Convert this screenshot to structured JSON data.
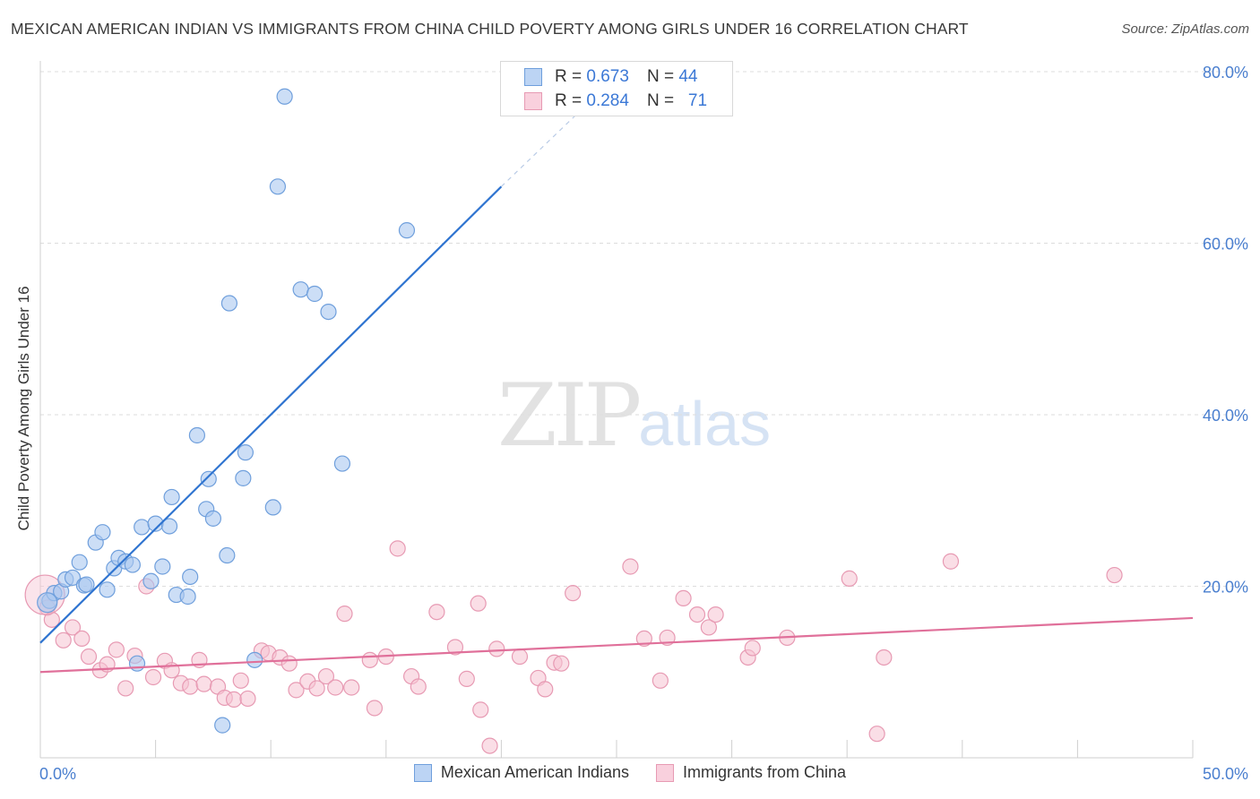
{
  "header": {
    "title": "MEXICAN AMERICAN INDIAN VS IMMIGRANTS FROM CHINA CHILD POVERTY AMONG GIRLS UNDER 16 CORRELATION CHART",
    "source": "Source: ZipAtlas.com"
  },
  "watermark": {
    "zip": "ZIP",
    "atlas": "atlas"
  },
  "colors": {
    "blue_fill": "#aac8f0",
    "blue_stroke": "#6f9fdc",
    "blue_line": "#2f74d0",
    "pink_fill": "#f6c3d2",
    "pink_stroke": "#e79ab3",
    "pink_line": "#e0709a",
    "grid": "#dddddd",
    "tick_text": "#4a7fcf"
  },
  "legend_top": {
    "rows": [
      {
        "r_label": "R =",
        "r_value": "0.673",
        "n_label": "N =",
        "n_value": "44"
      },
      {
        "r_label": "R =",
        "r_value": "0.284",
        "n_label": "N =",
        "n_value": "71"
      }
    ]
  },
  "legend_bottom": {
    "items": [
      {
        "label": "Mexican American Indians"
      },
      {
        "label": "Immigrants from China"
      }
    ]
  },
  "chart_data": {
    "type": "scatter",
    "title": "MEXICAN AMERICAN INDIAN VS IMMIGRANTS FROM CHINA CHILD POVERTY AMONG GIRLS UNDER 16 CORRELATION CHART",
    "xlabel": "",
    "ylabel": "Child Poverty Among Girls Under 16",
    "xlim": [
      0,
      50
    ],
    "ylim": [
      0,
      80
    ],
    "x_tick_labels": [
      "0.0%",
      "50.0%"
    ],
    "y_ticks": [
      20,
      40,
      60,
      80
    ],
    "y_tick_labels": [
      "20.0%",
      "40.0%",
      "60.0%",
      "80.0%"
    ],
    "grid": true,
    "series": [
      {
        "name": "Mexican American Indians",
        "r": 0.673,
        "n": 44,
        "trend": {
          "x0": 0.0,
          "y0": 13.4,
          "x1": 20.0,
          "y1": 66.6,
          "dashed_to_x": 23.8,
          "dashed_to_y": 76.4
        },
        "points": [
          [
            0.4,
            18.3
          ],
          [
            0.6,
            19.2
          ],
          [
            0.9,
            19.4
          ],
          [
            1.1,
            20.8
          ],
          [
            1.4,
            21.0
          ],
          [
            1.7,
            22.8
          ],
          [
            1.9,
            20.1
          ],
          [
            2.0,
            20.2
          ],
          [
            2.4,
            25.1
          ],
          [
            2.7,
            26.3
          ],
          [
            2.9,
            19.6
          ],
          [
            3.2,
            22.1
          ],
          [
            3.4,
            23.3
          ],
          [
            3.7,
            22.9
          ],
          [
            4.0,
            22.5
          ],
          [
            4.2,
            11.0
          ],
          [
            4.4,
            26.9
          ],
          [
            4.8,
            20.6
          ],
          [
            5.0,
            27.3
          ],
          [
            5.3,
            22.3
          ],
          [
            5.6,
            27.0
          ],
          [
            5.7,
            30.4
          ],
          [
            5.9,
            19.0
          ],
          [
            6.4,
            18.8
          ],
          [
            6.5,
            21.1
          ],
          [
            6.8,
            37.6
          ],
          [
            7.2,
            29.0
          ],
          [
            7.3,
            32.5
          ],
          [
            7.5,
            27.9
          ],
          [
            7.9,
            3.8
          ],
          [
            8.1,
            23.6
          ],
          [
            8.2,
            53.0
          ],
          [
            8.8,
            32.6
          ],
          [
            8.9,
            35.6
          ],
          [
            9.3,
            11.4
          ],
          [
            10.1,
            29.2
          ],
          [
            10.3,
            66.6
          ],
          [
            10.6,
            77.1
          ],
          [
            11.3,
            54.6
          ],
          [
            11.9,
            54.1
          ],
          [
            12.5,
            52.0
          ],
          [
            13.1,
            34.3
          ],
          [
            15.9,
            61.5
          ],
          [
            0.3,
            18.1
          ]
        ]
      },
      {
        "name": "Immigrants from China",
        "r": 0.284,
        "n": 71,
        "trend": {
          "x0": 0.0,
          "y0": 10.0,
          "x1": 50.0,
          "y1": 16.3
        },
        "points": [
          [
            0.3,
            17.5
          ],
          [
            0.5,
            16.1
          ],
          [
            1.0,
            13.7
          ],
          [
            1.4,
            15.2
          ],
          [
            1.8,
            13.9
          ],
          [
            2.1,
            11.8
          ],
          [
            2.6,
            10.2
          ],
          [
            2.9,
            10.9
          ],
          [
            3.3,
            12.6
          ],
          [
            3.7,
            8.1
          ],
          [
            4.1,
            11.9
          ],
          [
            4.6,
            20.0
          ],
          [
            4.9,
            9.4
          ],
          [
            5.4,
            11.3
          ],
          [
            5.7,
            10.2
          ],
          [
            6.1,
            8.7
          ],
          [
            6.5,
            8.3
          ],
          [
            6.9,
            11.4
          ],
          [
            7.1,
            8.6
          ],
          [
            7.7,
            8.3
          ],
          [
            8.0,
            7.0
          ],
          [
            8.4,
            6.8
          ],
          [
            8.7,
            9.0
          ],
          [
            9.0,
            6.9
          ],
          [
            9.6,
            12.5
          ],
          [
            9.9,
            12.2
          ],
          [
            10.4,
            11.7
          ],
          [
            10.8,
            11.0
          ],
          [
            11.1,
            7.9
          ],
          [
            11.6,
            8.9
          ],
          [
            12.0,
            8.1
          ],
          [
            12.4,
            9.5
          ],
          [
            12.8,
            8.2
          ],
          [
            13.2,
            16.8
          ],
          [
            13.5,
            8.2
          ],
          [
            14.3,
            11.4
          ],
          [
            14.5,
            5.8
          ],
          [
            15.0,
            11.8
          ],
          [
            15.5,
            24.4
          ],
          [
            16.1,
            9.5
          ],
          [
            16.4,
            8.3
          ],
          [
            17.2,
            17.0
          ],
          [
            18.0,
            12.9
          ],
          [
            18.5,
            9.2
          ],
          [
            19.0,
            18.0
          ],
          [
            19.1,
            5.6
          ],
          [
            19.5,
            1.4
          ],
          [
            19.8,
            12.7
          ],
          [
            20.8,
            11.8
          ],
          [
            21.6,
            9.3
          ],
          [
            21.9,
            8.0
          ],
          [
            22.3,
            11.1
          ],
          [
            22.6,
            11.0
          ],
          [
            23.1,
            19.2
          ],
          [
            25.6,
            22.3
          ],
          [
            26.2,
            13.9
          ],
          [
            26.9,
            9.0
          ],
          [
            27.2,
            14.0
          ],
          [
            27.9,
            18.6
          ],
          [
            28.5,
            16.7
          ],
          [
            29.0,
            15.2
          ],
          [
            29.3,
            16.7
          ],
          [
            30.7,
            11.7
          ],
          [
            30.9,
            12.8
          ],
          [
            32.4,
            14.0
          ],
          [
            35.1,
            20.9
          ],
          [
            36.3,
            2.8
          ],
          [
            36.6,
            11.7
          ],
          [
            39.5,
            22.9
          ],
          [
            46.6,
            21.3
          ],
          [
            0.2,
            19.0
          ]
        ]
      }
    ]
  }
}
